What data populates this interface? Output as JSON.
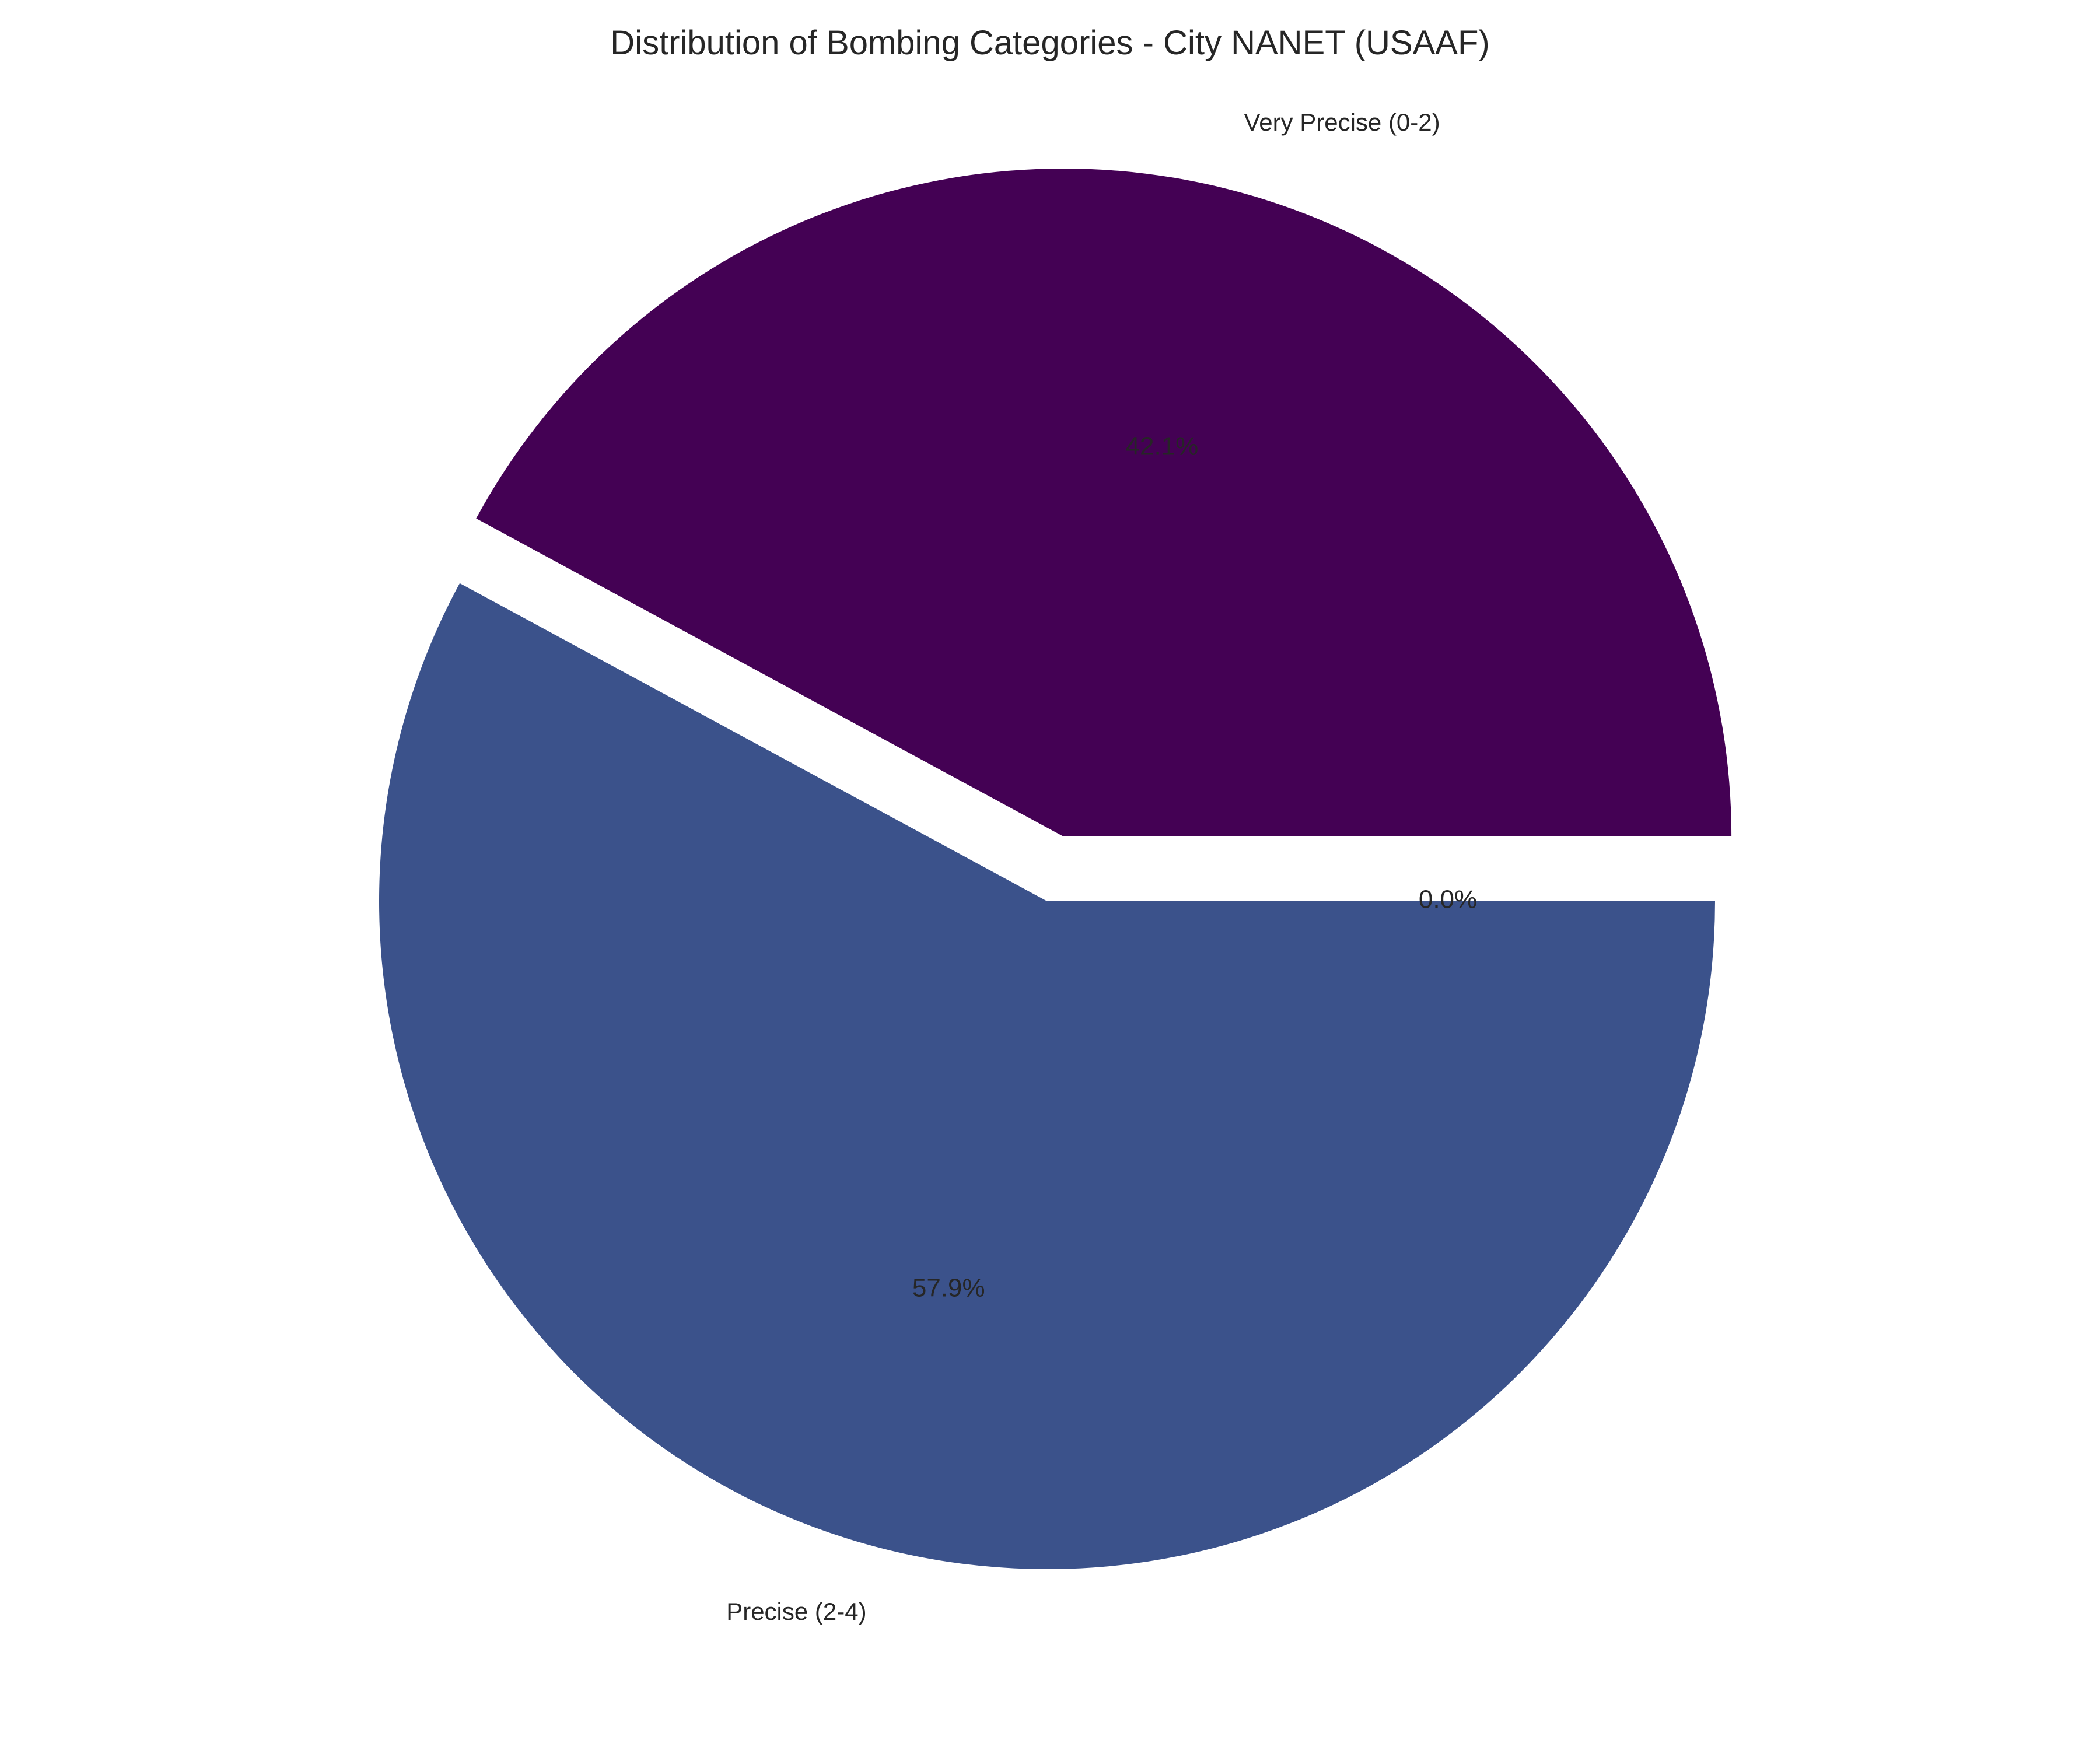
{
  "chart_data": {
    "type": "pie",
    "title": "Distribution of Bombing Categories - City NANET (USAAF)",
    "slices": [
      {
        "label": "Very Precise (0-2)",
        "value": 42.1,
        "pct_label": "42.1%",
        "color": "#440154",
        "exploded": true
      },
      {
        "label": "Precise (2-4)",
        "value": 57.9,
        "pct_label": "57.9%",
        "color": "#3b528b",
        "exploded": false
      },
      {
        "label": "",
        "value": 0.0,
        "pct_label": "0.0%",
        "color": "#21918c",
        "exploded": false
      }
    ],
    "start_angle_deg": 0,
    "direction": "counterclockwise",
    "legend": "none"
  }
}
